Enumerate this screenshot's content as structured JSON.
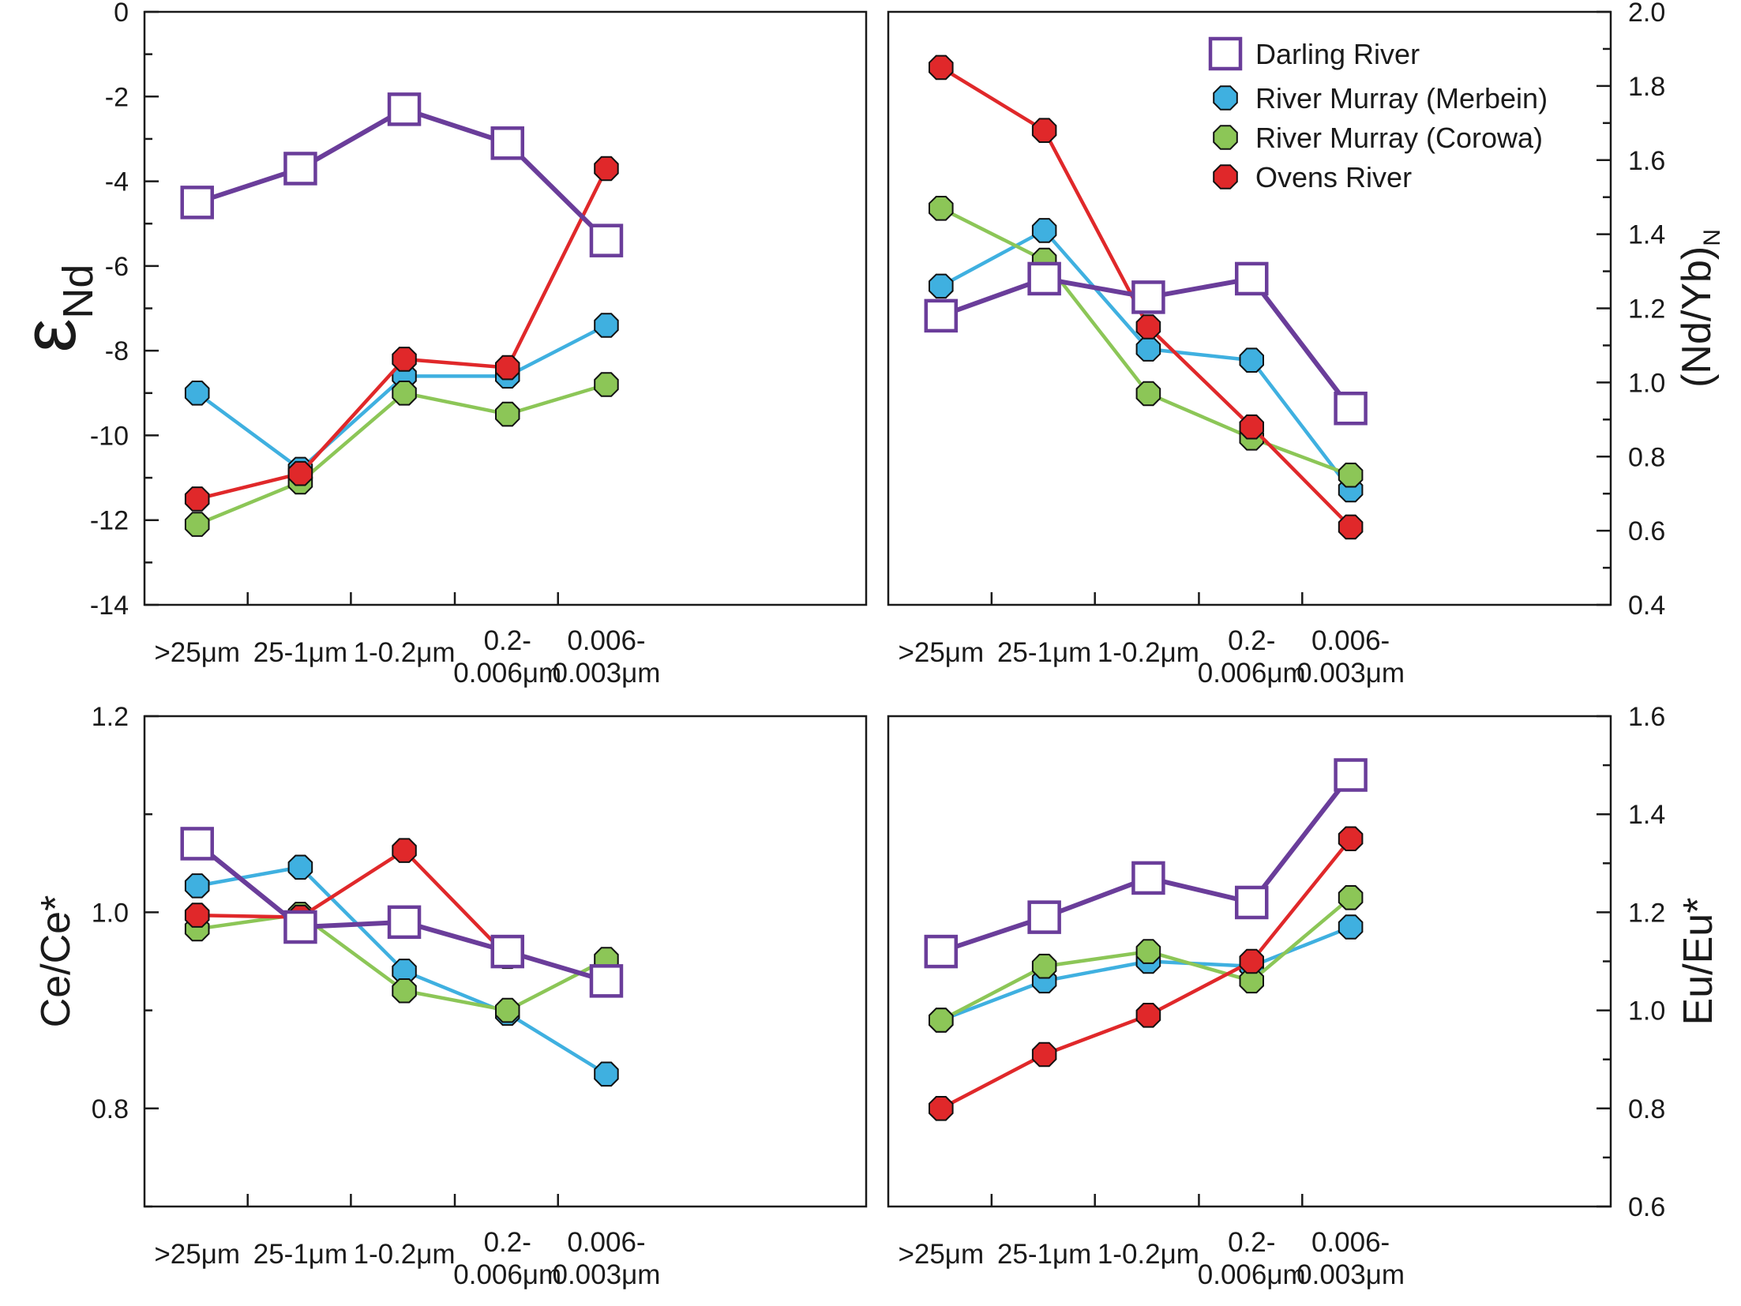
{
  "chart_data": [
    {
      "type": "line",
      "ylabel": "εNd",
      "ylabel_symbol": "ε",
      "ylabel_subscript": "Nd",
      "y_axis_side": "left",
      "ylim": [
        -14,
        0
      ],
      "ytick_values": [
        0,
        -2,
        -4,
        -6,
        -8,
        -10,
        -12,
        -14
      ],
      "yticks": [
        "0",
        "-2",
        "-4",
        "-6",
        "-8",
        "-10",
        "-12",
        "-14"
      ],
      "categories": [
        ">25μm",
        "25-1μm",
        "1-0.2μm",
        "0.2-\n0.006μm",
        "0.006-\n0.003μm"
      ],
      "series": [
        {
          "name": "Darling River",
          "values": [
            -4.5,
            -3.7,
            -2.3,
            -3.1,
            -5.4
          ]
        },
        {
          "name": "River Murray (Merbein)",
          "values": [
            -9.0,
            -10.8,
            -8.6,
            -8.6,
            -7.4
          ]
        },
        {
          "name": "River Murray (Corowa)",
          "values": [
            -12.1,
            -11.1,
            -9.0,
            -9.5,
            -8.8
          ]
        },
        {
          "name": "Ovens River",
          "values": [
            -11.5,
            -10.9,
            -8.2,
            -8.4,
            -3.7
          ]
        }
      ]
    },
    {
      "type": "line",
      "ylabel": "(Nd/Yb)N",
      "ylabel_main": "(Nd/Yb)",
      "ylabel_subscript": "N",
      "y_axis_side": "right",
      "ylim": [
        0.4,
        2.0
      ],
      "ytick_values": [
        2.0,
        1.8,
        1.6,
        1.4,
        1.2,
        1.0,
        0.8,
        0.6,
        0.4
      ],
      "yticks": [
        "2.0",
        "1.8",
        "1.6",
        "1.4",
        "1.2",
        "1.0",
        "0.8",
        "0.6",
        "0.4"
      ],
      "categories": [
        ">25μm",
        "25-1μm",
        "1-0.2μm",
        "0.2-\n0.006μm",
        "0.006-\n0.003μm"
      ],
      "series": [
        {
          "name": "Darling River",
          "values": [
            1.18,
            1.28,
            1.23,
            1.28,
            0.93
          ]
        },
        {
          "name": "River Murray (Merbein)",
          "values": [
            1.26,
            1.41,
            1.09,
            1.06,
            0.71
          ]
        },
        {
          "name": "River Murray (Corowa)",
          "values": [
            1.47,
            1.33,
            0.97,
            0.85,
            0.75
          ]
        },
        {
          "name": "Ovens River",
          "values": [
            1.85,
            1.68,
            1.15,
            0.88,
            0.61
          ]
        }
      ]
    },
    {
      "type": "line",
      "ylabel": "Ce/Ce*",
      "y_axis_side": "left",
      "ylim": [
        0.7,
        1.2
      ],
      "ytick_values": [
        1.2,
        1.0,
        0.8
      ],
      "yticks": [
        "1.2",
        "1.0",
        "0.8"
      ],
      "minor_ytick_values": [
        1.1,
        0.9,
        0.7
      ],
      "categories": [
        ">25μm",
        "25-1μm",
        "1-0.2μm",
        "0.2-\n0.006μm",
        "0.006-\n0.003μm"
      ],
      "series": [
        {
          "name": "Darling River",
          "values": [
            1.07,
            0.985,
            0.99,
            0.96,
            0.93
          ]
        },
        {
          "name": "River Murray (Merbein)",
          "values": [
            1.027,
            1.046,
            0.94,
            0.897,
            0.835
          ]
        },
        {
          "name": "River Murray (Corowa)",
          "values": [
            0.983,
            0.998,
            0.92,
            0.9,
            0.952
          ]
        },
        {
          "name": "Ovens River",
          "values": [
            0.997,
            0.995,
            1.063,
            0.955,
            null
          ]
        }
      ]
    },
    {
      "type": "line",
      "ylabel": "Eu/Eu*",
      "y_axis_side": "right",
      "ylim": [
        0.6,
        1.6
      ],
      "ytick_values": [
        1.6,
        1.4,
        1.2,
        1.0,
        0.8,
        0.6
      ],
      "yticks": [
        "1.6",
        "1.4",
        "1.2",
        "1.0",
        "0.8",
        "0.6"
      ],
      "categories": [
        ">25μm",
        "25-1μm",
        "1-0.2μm",
        "0.2-\n0.006μm",
        "0.006-\n0.003μm"
      ],
      "series": [
        {
          "name": "Darling River",
          "values": [
            1.12,
            1.19,
            1.27,
            1.22,
            1.48
          ]
        },
        {
          "name": "River Murray (Merbein)",
          "values": [
            0.98,
            1.06,
            1.1,
            1.09,
            1.17
          ]
        },
        {
          "name": "River Murray (Corowa)",
          "values": [
            0.98,
            1.09,
            1.12,
            1.06,
            1.23
          ]
        },
        {
          "name": "Ovens River",
          "values": [
            0.8,
            0.91,
            0.99,
            1.1,
            1.35
          ]
        }
      ]
    }
  ],
  "legend": {
    "placement": "top-right of upper-right panel",
    "entries": [
      {
        "label": "Darling River",
        "marker": "open-square",
        "color": "#6a3d9a"
      },
      {
        "label": "River Murray (Merbein)",
        "marker": "filled-octagon",
        "color": "#3fb0e0"
      },
      {
        "label": "River Murray (Corowa)",
        "marker": "filled-octagon",
        "color": "#8cc657"
      },
      {
        "label": "Ovens River",
        "marker": "filled-octagon",
        "color": "#e0282a"
      }
    ]
  },
  "colors": {
    "Darling River": "#6a3d9a",
    "River Murray (Merbein)": "#3fb0e0",
    "River Murray (Corowa)": "#8cc657",
    "Ovens River": "#e0282a"
  }
}
